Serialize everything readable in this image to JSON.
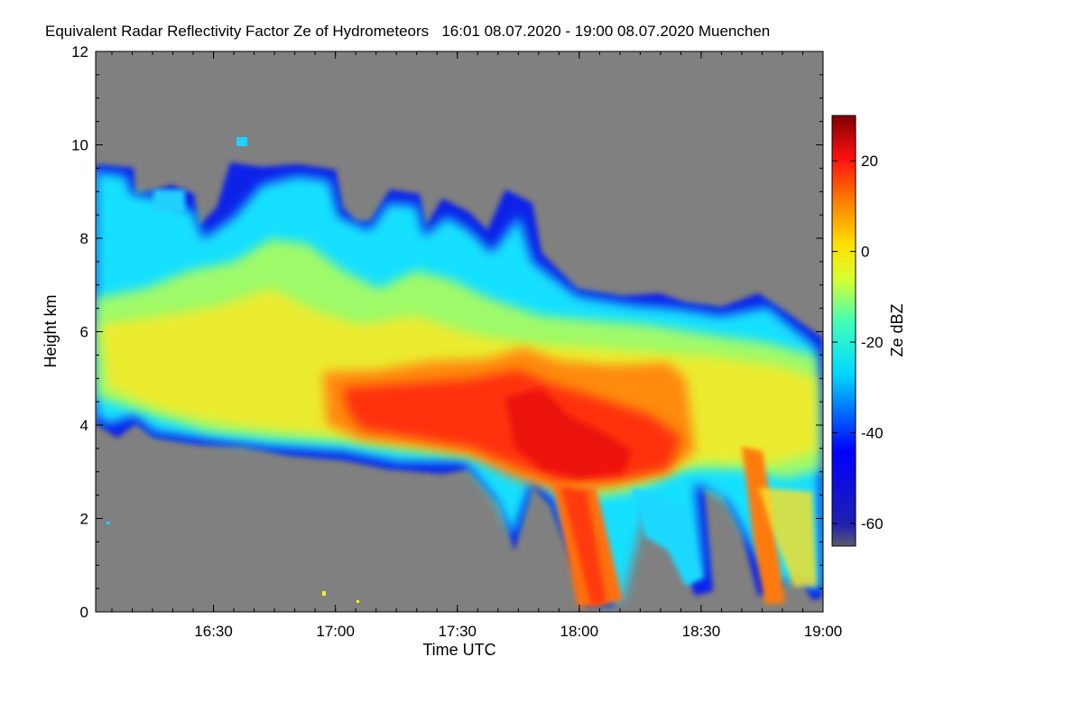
{
  "chart_data": {
    "type": "heatmap",
    "title": "Equivalent Radar Reflectivity Factor Ze of Hydrometeors   16:01 08.07.2020 - 19:00 08.07.2020 Muenchen",
    "xlabel": "Time UTC",
    "ylabel": "Height km",
    "x_range": [
      "16:01",
      "19:00"
    ],
    "x_ticks": [
      "16:30",
      "17:00",
      "17:30",
      "18:00",
      "18:30",
      "19:00"
    ],
    "y_range": [
      0,
      12
    ],
    "y_ticks": [
      0,
      2,
      4,
      6,
      8,
      10,
      12
    ],
    "colorbar": {
      "label": "Ze dBZ",
      "range": [
        -65,
        30
      ],
      "ticks": [
        20,
        0,
        -20,
        -40,
        -60
      ]
    },
    "no_data_color": "#808080",
    "features": [
      {
        "time_range": [
          "16:01",
          "18:55"
        ],
        "height_range": [
          3.0,
          9.5
        ],
        "ze_range": [
          -45,
          0
        ],
        "description": "stratiform cloud layer, top descending from ~9 km to ~5.8 km"
      },
      {
        "time_range": [
          "16:55",
          "18:35"
        ],
        "height_range": [
          2.8,
          5.5
        ],
        "ze_range": [
          5,
          20
        ],
        "description": "bright band / enhanced reflectivity core"
      },
      {
        "time_range": [
          "17:55",
          "18:10"
        ],
        "height_range": [
          0,
          2.8
        ],
        "ze_range": [
          5,
          20
        ],
        "description": "precipitation shaft reaching ground"
      },
      {
        "time_range": [
          "18:40",
          "18:48"
        ],
        "height_range": [
          0,
          3.5
        ],
        "ze_range": [
          5,
          20
        ],
        "description": "second precipitation shaft reaching ground"
      }
    ]
  }
}
